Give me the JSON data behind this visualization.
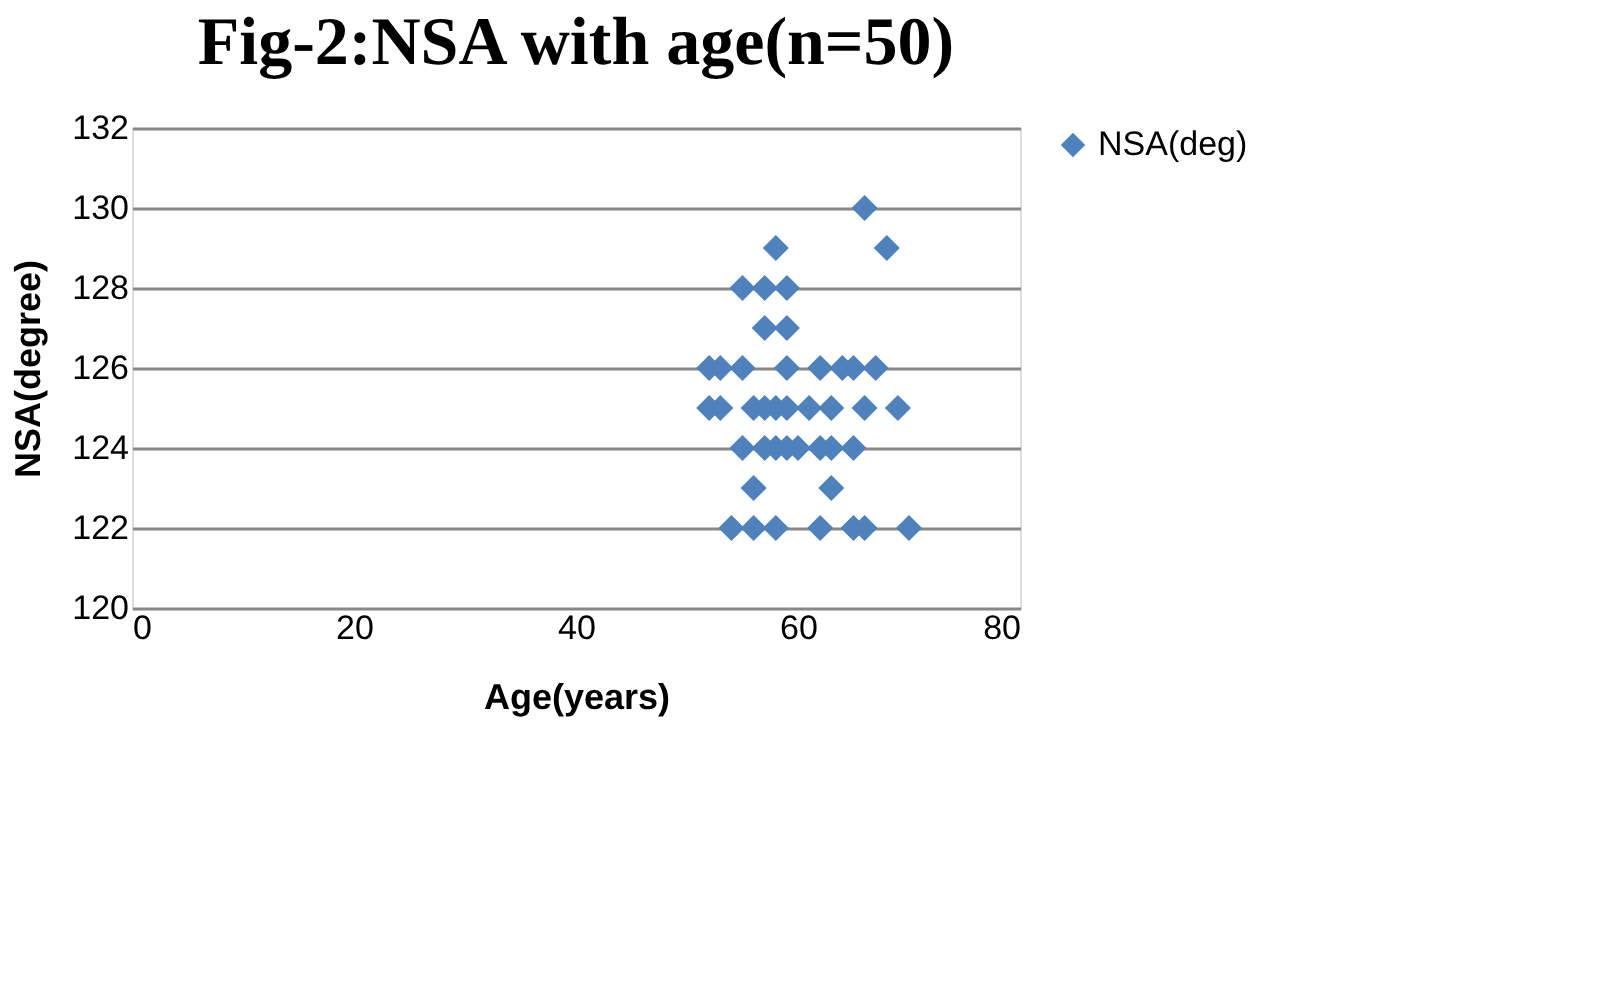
{
  "chart_data": {
    "type": "scatter",
    "title": "Fig-2:NSA with age(n=50)",
    "xlabel": "Age(years)",
    "ylabel": "NSA(degree)",
    "x": [
      66,
      58,
      68,
      55,
      57,
      59,
      57,
      59,
      52,
      53,
      55,
      59,
      62,
      64,
      65,
      67,
      52,
      53,
      56,
      57,
      58,
      59,
      61,
      63,
      66,
      69,
      55,
      57,
      58,
      59,
      60,
      62,
      63,
      65,
      56,
      63,
      54,
      56,
      58,
      62,
      65,
      66,
      70
    ],
    "series": [
      {
        "name": "NSA(deg)",
        "color": "#4f81bd",
        "values": [
          130,
          129,
          129,
          128,
          128,
          128,
          127,
          127,
          126,
          126,
          126,
          126,
          126,
          126,
          126,
          126,
          125,
          125,
          125,
          125,
          125,
          125,
          125,
          125,
          125,
          125,
          124,
          124,
          124,
          124,
          124,
          124,
          124,
          124,
          123,
          123,
          122,
          122,
          122,
          122,
          122,
          122,
          122
        ]
      }
    ],
    "xlim": [
      0,
      80
    ],
    "xticks": [
      0,
      20,
      40,
      60,
      80
    ],
    "ylim": [
      120,
      132
    ],
    "yticks": [
      120,
      122,
      124,
      126,
      128,
      130,
      132
    ],
    "grid": "y",
    "legend": "right",
    "marker": "diamond"
  }
}
